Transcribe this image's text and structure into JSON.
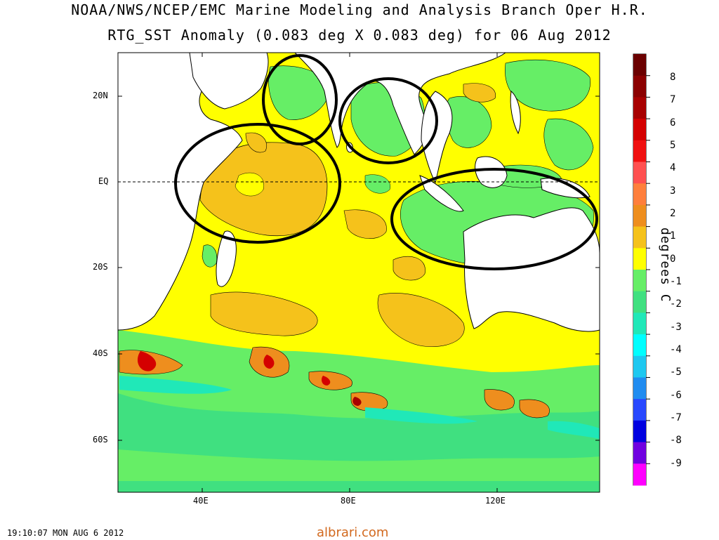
{
  "title_line1": "NOAA/NWS/NCEP/EMC Marine Modeling and Analysis Branch Oper H.R.",
  "title_line2": "RTG_SST Anomaly (0.083 deg X 0.083 deg) for 06 Aug 2012",
  "lat_labels": [
    "20N",
    "EQ",
    "20S",
    "40S",
    "60S"
  ],
  "lon_labels": [
    "40E",
    "80E",
    "120E"
  ],
  "colorbar": {
    "labels": [
      "8",
      "7",
      "6",
      "5",
      "4",
      "3",
      "2",
      "1",
      "0",
      "-1",
      "-2",
      "-3",
      "-4",
      "-5",
      "-6",
      "-7",
      "-8",
      "-9"
    ],
    "colors": [
      "#6b0000",
      "#8b0000",
      "#a80000",
      "#d40000",
      "#f01010",
      "#ff5050",
      "#ff7f3c",
      "#ee8e1e",
      "#f5c21b",
      "#ffff00",
      "#66ee66",
      "#40e080",
      "#20e8b8",
      "#00ffff",
      "#1ec8f0",
      "#208cf0",
      "#2848ff",
      "#0000e0",
      "#7000e0",
      "#ff00ff"
    ],
    "unit": "degrees C"
  },
  "colors": {
    "land": "#ffffff",
    "neutral_anomaly": "#66ee66",
    "warm_anomaly": "#ffff00",
    "warm2_anomaly": "#f5c21b",
    "cool_anomaly": "#40e080",
    "circle_annotations": "#000000"
  },
  "annotation_circle_count": 4,
  "timestamp": "19:10:07  MON AUG 6 2012",
  "credit": "albrari.com"
}
